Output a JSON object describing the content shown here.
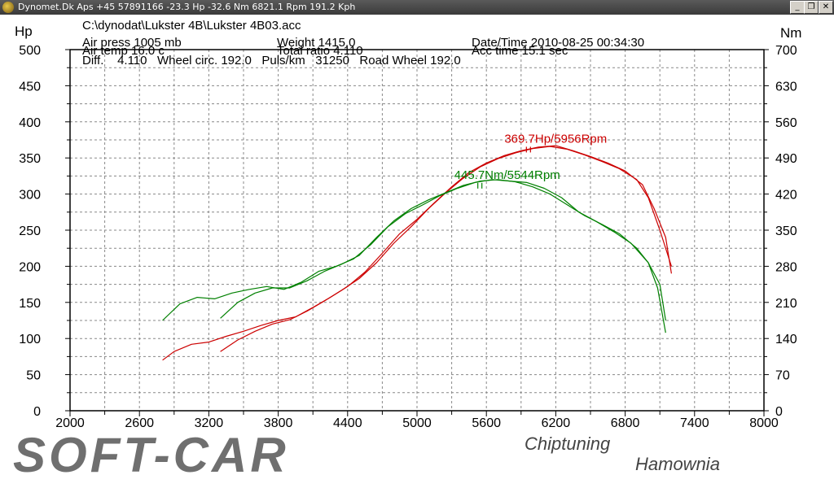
{
  "window": {
    "title": "Dynomet.Dk Aps +45 57891166  -23.3 Hp -32.6 Nm 6821.1 Rpm 191.2 Kph",
    "minimize": "_",
    "restore": "❐",
    "close": "✕"
  },
  "header": {
    "file": "C:\\dynodat\\Lukster 4B\\Lukster 4B03.acc",
    "air_press": "Air press  1005 mb",
    "air_temp": "Air temp  16.0 c",
    "weight": "Weight   1415.0",
    "total_ratio": "Total ratio 4.110",
    "date_time": "Date/Time  2010-08-25 00:34:30",
    "acc_time": "Acc time   15.1 sec",
    "diff_line": "Diff.    4.110   Wheel circ. 192.0   Puls/km   31250   Road Wheel 192.0"
  },
  "chart_data": {
    "type": "line",
    "xlim": [
      2000,
      8000
    ],
    "xticks": [
      "2000",
      "2600",
      "3200",
      "3800",
      "4400",
      "5000",
      "5600",
      "6200",
      "6800",
      "7400",
      "8000"
    ],
    "y_left": {
      "label": "Hp",
      "ylim": [
        0,
        500
      ],
      "ticks": [
        "0",
        "50",
        "100",
        "150",
        "200",
        "250",
        "300",
        "350",
        "400",
        "450",
        "500"
      ]
    },
    "y_right": {
      "label": "Nm",
      "ylim": [
        0,
        700
      ],
      "ticks": [
        "0",
        "70",
        "140",
        "210",
        "280",
        "350",
        "420",
        "490",
        "560",
        "630",
        "700"
      ]
    },
    "grid": true,
    "annotations": [
      {
        "text": "369.7Hp/5956Rpm",
        "color": "#cc0000",
        "x": 5960,
        "y": 370
      },
      {
        "text": "445.7Nm/5544Rpm",
        "color": "#008000",
        "x": 5540,
        "y": 320
      }
    ],
    "series": [
      {
        "color": "#cc0000",
        "axis": "left",
        "x": [
          2800,
          2900,
          3050,
          3200,
          3350,
          3500,
          3650,
          3800,
          3950,
          4100,
          4250,
          4400,
          4550,
          4700,
          4850,
          5000,
          5150,
          5300,
          5450,
          5600,
          5750,
          5900,
          6050,
          6200,
          6350,
          6500,
          6650,
          6800,
          6950,
          7050,
          7150,
          7200
        ],
        "y": [
          70,
          82,
          92,
          95,
          103,
          110,
          118,
          125,
          130,
          143,
          157,
          172,
          192,
          218,
          245,
          265,
          288,
          310,
          330,
          343,
          353,
          360,
          365,
          367,
          360,
          352,
          343,
          332,
          313,
          280,
          240,
          190
        ]
      },
      {
        "color": "#cc0000",
        "axis": "left",
        "x": [
          3300,
          3450,
          3600,
          3750,
          3900,
          4050,
          4200,
          4350,
          4500,
          4650,
          4800,
          4950,
          5100,
          5250,
          5400,
          5550,
          5700,
          5850,
          6000,
          6150,
          6300,
          6450,
          6600,
          6750,
          6900,
          7000,
          7100,
          7200
        ],
        "y": [
          82,
          98,
          110,
          120,
          126,
          138,
          152,
          167,
          183,
          205,
          232,
          255,
          280,
          302,
          322,
          338,
          349,
          357,
          363,
          366,
          362,
          354,
          345,
          335,
          320,
          295,
          250,
          200
        ]
      },
      {
        "color": "#008000",
        "axis": "left",
        "x": [
          2800,
          2950,
          3100,
          3250,
          3400,
          3550,
          3700,
          3850,
          4000,
          4150,
          4300,
          4450,
          4600,
          4750,
          4900,
          5050,
          5200,
          5350,
          5500,
          5650,
          5800,
          5950,
          6100,
          6250,
          6400,
          6550,
          6700,
          6850,
          7000,
          7080,
          7150
        ],
        "y": [
          125,
          148,
          157,
          155,
          163,
          168,
          172,
          168,
          178,
          193,
          200,
          210,
          230,
          255,
          273,
          285,
          298,
          308,
          316,
          320,
          318,
          316,
          308,
          295,
          275,
          262,
          248,
          232,
          205,
          170,
          108
        ]
      },
      {
        "color": "#008000",
        "axis": "left",
        "x": [
          3300,
          3450,
          3600,
          3750,
          3900,
          4050,
          4200,
          4350,
          4500,
          4650,
          4800,
          4950,
          5100,
          5250,
          5400,
          5550,
          5700,
          5850,
          6000,
          6150,
          6300,
          6450,
          6600,
          6750,
          6900,
          7000,
          7100,
          7150
        ],
        "y": [
          128,
          150,
          163,
          170,
          170,
          180,
          193,
          203,
          215,
          240,
          263,
          280,
          292,
          302,
          312,
          318,
          320,
          317,
          310,
          300,
          285,
          270,
          258,
          245,
          225,
          205,
          175,
          125
        ]
      }
    ]
  },
  "branding": {
    "logo": "SOFT-CAR",
    "tagline": "Chiptuning",
    "location": "Hamownia"
  }
}
